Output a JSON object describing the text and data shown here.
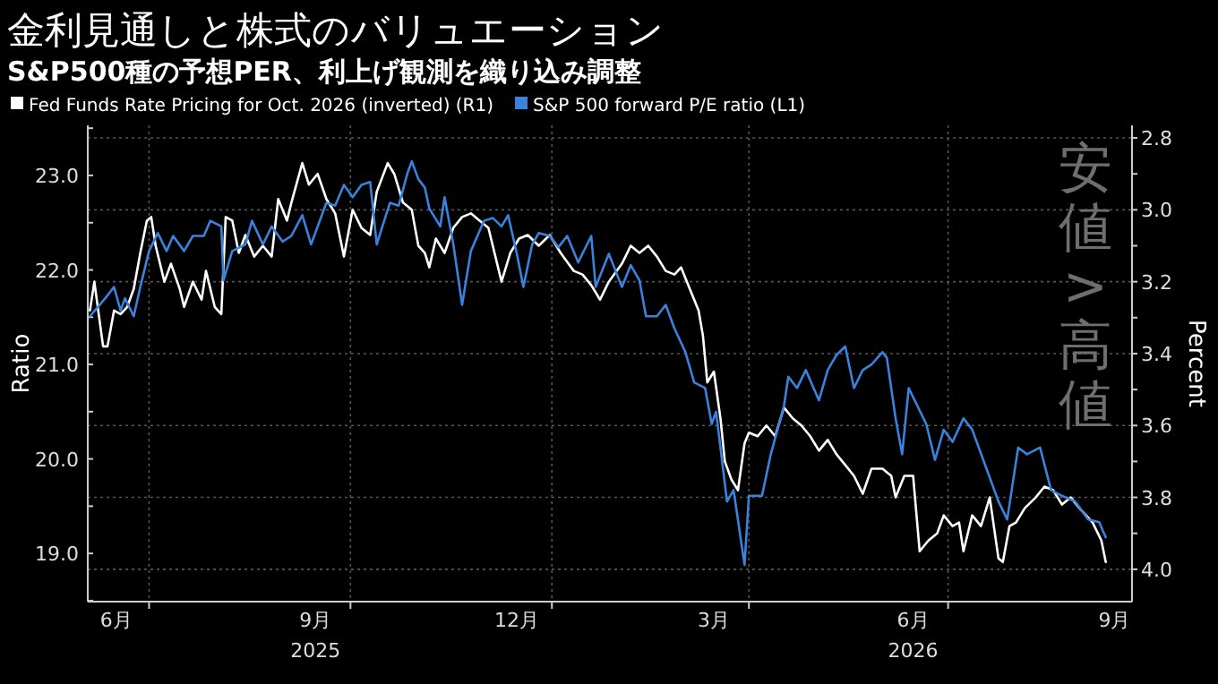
{
  "chart_data": {
    "type": "line",
    "title": "金利見通しと株式のバリュエーション",
    "subtitle": "S&P500種の予想PER、利上げ観測を織り込み調整",
    "ylabel": "Ratio",
    "y2label": "Percent",
    "annotations": [
      "安値>高値"
    ],
    "legend": "top left",
    "grid": true,
    "xlim": [
      "2025-06-03",
      "2026-09-23"
    ],
    "xticks": [
      {
        "value": "2025-06-16",
        "label": "6月"
      },
      {
        "value": "2025-09-15",
        "label": "9月\n2025"
      },
      {
        "value": "2025-12-16",
        "label": "12月"
      },
      {
        "value": "2026-03-16",
        "label": "3月"
      },
      {
        "value": "2026-06-15",
        "label": "6月\n2026"
      },
      {
        "value": "2026-09-15",
        "label": "9月"
      },
      {
        "value": "2025-07-01",
        "label": null
      },
      {
        "value": "2025-10-01",
        "label": null
      },
      {
        "value": "2026-01-01",
        "label": null
      },
      {
        "value": "2026-04-01",
        "label": null
      },
      {
        "value": "2026-07-01",
        "label": null
      }
    ],
    "ylim": [
      18.49,
      23.53
    ],
    "yticks": [
      {
        "value": 19,
        "label": "19.0"
      },
      {
        "value": 20,
        "label": "20.0"
      },
      {
        "value": 21,
        "label": "21.0"
      },
      {
        "value": 22,
        "label": "22.0"
      },
      {
        "value": 23,
        "label": "23.0"
      },
      {
        "value": 18.5,
        "label": null
      },
      {
        "value": 19.5,
        "label": null
      },
      {
        "value": 20.5,
        "label": null
      },
      {
        "value": 21.5,
        "label": null
      },
      {
        "value": 22.5,
        "label": null
      },
      {
        "value": 23.5,
        "label": null
      }
    ],
    "y2lim": [
      4.09,
      2.765
    ],
    "y2ticks": [
      2.8,
      {
        "value": 3,
        "label": "3.0"
      },
      3.2,
      3.4,
      3.6,
      3.8,
      {
        "value": 4,
        "label": "4.0"
      },
      {
        "value": 2.9,
        "label": null
      },
      {
        "value": 3.1,
        "label": null
      },
      {
        "value": 3.3,
        "label": null
      },
      {
        "value": 3.5,
        "label": null
      },
      {
        "value": 3.7,
        "label": null
      },
      {
        "value": 3.9,
        "label": null
      }
    ],
    "series": [
      {
        "name": "Fed Funds Rate Pricing for Oct. 2026 (inverted) (R1)",
        "color": "#ffffff",
        "axis": "y2",
        "x": [
          "2025-06-04",
          "2025-06-06",
          "2025-06-08",
          "2025-06-10",
          "2025-06-12",
          "2025-06-15",
          "2025-06-18",
          "2025-06-21",
          "2025-06-24",
          "2025-06-27",
          "2025-06-30",
          "2025-07-02",
          "2025-07-04",
          "2025-07-08",
          "2025-07-11",
          "2025-07-15",
          "2025-07-17",
          "2025-07-21",
          "2025-07-25",
          "2025-07-27",
          "2025-07-31",
          "2025-08-03",
          "2025-08-05",
          "2025-08-08",
          "2025-08-11",
          "2025-08-14",
          "2025-08-18",
          "2025-08-22",
          "2025-08-26",
          "2025-08-29",
          "2025-09-02",
          "2025-09-04",
          "2025-09-09",
          "2025-09-12",
          "2025-09-16",
          "2025-09-20",
          "2025-09-24",
          "2025-09-28",
          "2025-10-02",
          "2025-10-06",
          "2025-10-10",
          "2025-10-13",
          "2025-10-18",
          "2025-10-21",
          "2025-10-25",
          "2025-10-29",
          "2025-11-01",
          "2025-11-04",
          "2025-11-06",
          "2025-11-09",
          "2025-11-13",
          "2025-11-17",
          "2025-11-21",
          "2025-11-25",
          "2025-11-29",
          "2025-12-03",
          "2025-12-09",
          "2025-12-13",
          "2025-12-17",
          "2025-12-21",
          "2025-12-26",
          "2025-12-31",
          "2026-01-05",
          "2026-01-11",
          "2026-01-15",
          "2026-01-19",
          "2026-01-23",
          "2026-01-27",
          "2026-02-02",
          "2026-02-06",
          "2026-02-10",
          "2026-02-14",
          "2026-02-18",
          "2026-02-22",
          "2026-02-26",
          "2026-03-01",
          "2026-03-05",
          "2026-03-09",
          "2026-03-11",
          "2026-03-13",
          "2026-03-16",
          "2026-03-19",
          "2026-03-21",
          "2026-03-24",
          "2026-03-27",
          "2026-03-30",
          "2026-04-01",
          "2026-04-05",
          "2026-04-09",
          "2026-04-13",
          "2026-04-17",
          "2026-04-21",
          "2026-04-25",
          "2026-04-29",
          "2026-05-03",
          "2026-05-07",
          "2026-05-11",
          "2026-05-15",
          "2026-05-19",
          "2026-05-23",
          "2026-05-27",
          "2026-06-01",
          "2026-06-05",
          "2026-06-07",
          "2026-06-11",
          "2026-06-15",
          "2026-06-18",
          "2026-06-22",
          "2026-06-26",
          "2026-06-29",
          "2026-07-03",
          "2026-07-06",
          "2026-07-08",
          "2026-07-12",
          "2026-07-16",
          "2026-07-20",
          "2026-07-24",
          "2026-07-26",
          "2026-07-29",
          "2026-08-01",
          "2026-08-05",
          "2026-08-10",
          "2026-08-14",
          "2026-08-18",
          "2026-08-22",
          "2026-08-26",
          "2026-08-30",
          "2026-09-05",
          "2026-09-09",
          "2026-09-11"
        ],
        "values": [
          3.28,
          3.2,
          3.29,
          3.38,
          3.38,
          3.28,
          3.29,
          3.27,
          3.22,
          3.12,
          3.03,
          3.02,
          3.1,
          3.2,
          3.15,
          3.22,
          3.27,
          3.2,
          3.25,
          3.17,
          3.27,
          3.29,
          3.02,
          3.03,
          3.12,
          3.07,
          3.13,
          3.1,
          3.13,
          2.97,
          3.03,
          2.98,
          2.87,
          2.93,
          2.9,
          2.97,
          3.01,
          3.13,
          3.0,
          3.05,
          3.07,
          2.95,
          2.87,
          2.9,
          2.98,
          3.0,
          3.1,
          3.12,
          3.16,
          3.08,
          3.12,
          3.05,
          3.02,
          3.01,
          3.03,
          3.05,
          3.2,
          3.12,
          3.08,
          3.07,
          3.1,
          3.07,
          3.12,
          3.17,
          3.18,
          3.21,
          3.25,
          3.2,
          3.15,
          3.1,
          3.12,
          3.1,
          3.13,
          3.17,
          3.18,
          3.16,
          3.22,
          3.28,
          3.35,
          3.48,
          3.45,
          3.58,
          3.7,
          3.75,
          3.78,
          3.65,
          3.62,
          3.63,
          3.6,
          3.63,
          3.55,
          3.58,
          3.6,
          3.63,
          3.67,
          3.64,
          3.68,
          3.71,
          3.74,
          3.79,
          3.72,
          3.72,
          3.74,
          3.8,
          3.74,
          3.74,
          3.95,
          3.92,
          3.9,
          3.85,
          3.88,
          3.87,
          3.95,
          3.85,
          3.88,
          3.8,
          3.97,
          3.98,
          3.88,
          3.87,
          3.83,
          3.8,
          3.77,
          3.78,
          3.82,
          3.8,
          3.83,
          3.87,
          3.92,
          3.98
        ]
      },
      {
        "name": "S&P 500 forward P/E ratio (L1)",
        "color": "#3a82dc",
        "x": [
          "2025-06-04",
          "2025-06-11",
          "2025-06-15",
          "2025-06-18",
          "2025-06-20",
          "2025-06-24",
          "2025-06-27",
          "2025-07-01",
          "2025-07-05",
          "2025-07-09",
          "2025-07-12",
          "2025-07-17",
          "2025-07-21",
          "2025-07-26",
          "2025-07-29",
          "2025-08-03",
          "2025-08-04",
          "2025-08-08",
          "2025-08-14",
          "2025-08-17",
          "2025-08-22",
          "2025-08-26",
          "2025-08-31",
          "2025-09-04",
          "2025-09-09",
          "2025-09-13",
          "2025-09-20",
          "2025-09-24",
          "2025-09-28",
          "2025-10-02",
          "2025-10-06",
          "2025-10-10",
          "2025-10-13",
          "2025-10-19",
          "2025-10-23",
          "2025-10-27",
          "2025-10-29",
          "2025-11-01",
          "2025-11-04",
          "2025-11-06",
          "2025-11-11",
          "2025-11-13",
          "2025-11-17",
          "2025-11-21",
          "2025-11-25",
          "2025-12-01",
          "2025-12-05",
          "2025-12-09",
          "2025-12-12",
          "2025-12-16",
          "2025-12-19",
          "2025-12-23",
          "2025-12-26",
          "2025-12-31",
          "2026-01-04",
          "2026-01-08",
          "2026-01-13",
          "2026-01-19",
          "2026-01-21",
          "2026-01-27",
          "2026-02-02",
          "2026-02-06",
          "2026-02-10",
          "2026-02-13",
          "2026-02-18",
          "2026-02-22",
          "2026-02-26",
          "2026-03-03",
          "2026-03-07",
          "2026-03-12",
          "2026-03-15",
          "2026-03-17",
          "2026-03-20",
          "2026-03-22",
          "2026-03-25",
          "2026-03-30",
          "2026-04-01",
          "2026-04-07",
          "2026-04-11",
          "2026-04-17",
          "2026-04-19",
          "2026-04-23",
          "2026-04-27",
          "2026-05-03",
          "2026-05-07",
          "2026-05-11",
          "2026-05-15",
          "2026-05-19",
          "2026-05-23",
          "2026-05-27",
          "2026-06-01",
          "2026-06-03",
          "2026-06-07",
          "2026-06-10",
          "2026-06-13",
          "2026-06-17",
          "2026-06-21",
          "2026-06-25",
          "2026-06-29",
          "2026-07-03",
          "2026-07-08",
          "2026-07-12",
          "2026-07-18",
          "2026-07-24",
          "2026-07-28",
          "2026-08-02",
          "2026-08-06",
          "2026-08-12",
          "2026-08-17",
          "2026-08-22",
          "2026-08-28",
          "2026-09-03",
          "2026-09-08",
          "2026-09-11"
        ],
        "values": [
          21.51,
          21.7,
          21.82,
          21.57,
          21.7,
          21.51,
          21.82,
          22.2,
          22.39,
          22.2,
          22.36,
          22.2,
          22.36,
          22.36,
          22.52,
          22.46,
          21.89,
          22.2,
          22.27,
          22.52,
          22.27,
          22.46,
          22.3,
          22.36,
          22.58,
          22.27,
          22.71,
          22.68,
          22.9,
          22.77,
          22.9,
          22.93,
          22.27,
          22.71,
          22.68,
          23.02,
          23.15,
          22.96,
          22.87,
          22.65,
          22.46,
          22.77,
          22.27,
          21.63,
          22.2,
          22.52,
          22.55,
          22.46,
          22.58,
          22.17,
          21.82,
          22.27,
          22.39,
          22.36,
          22.24,
          22.36,
          22.08,
          22.36,
          21.82,
          22.17,
          21.82,
          22.05,
          21.89,
          21.51,
          21.51,
          21.63,
          21.38,
          21.13,
          20.81,
          20.75,
          20.37,
          20.5,
          19.93,
          19.55,
          19.67,
          18.88,
          19.61,
          19.61,
          20.05,
          20.56,
          20.87,
          20.75,
          20.94,
          20.62,
          20.94,
          21.1,
          21.19,
          20.75,
          20.94,
          21.0,
          21.13,
          21.07,
          20.43,
          20.05,
          20.75,
          20.56,
          20.37,
          19.99,
          20.31,
          20.18,
          20.43,
          20.31,
          19.93,
          19.55,
          19.36,
          20.12,
          20.05,
          20.12,
          19.67,
          19.61,
          19.55,
          19.36,
          19.33,
          19.17
        ]
      }
    ]
  }
}
